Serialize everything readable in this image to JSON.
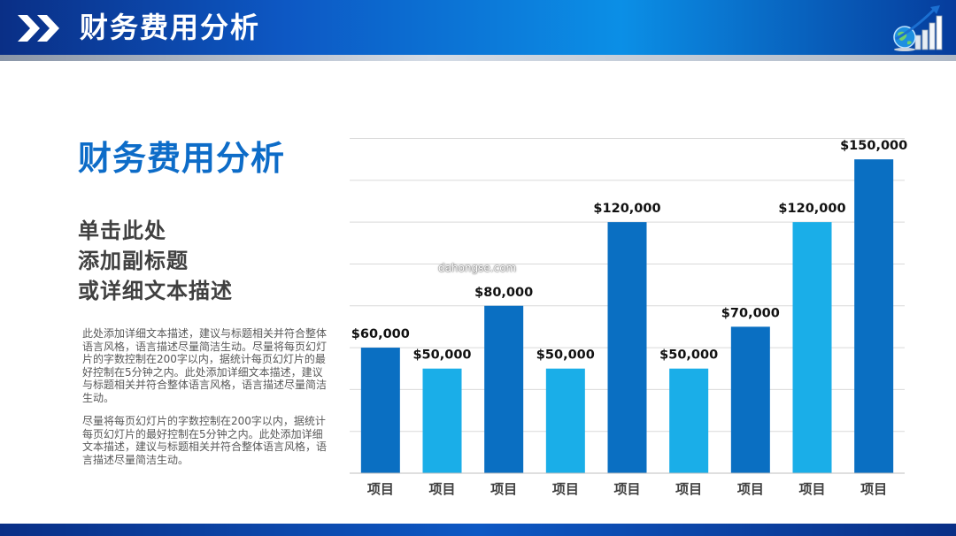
{
  "header": {
    "title": "财务费用分析",
    "chevron_icon": "double-chevron-right-icon",
    "logo_icon": "globe-growth-chart-logo"
  },
  "main": {
    "title": "财务费用分析",
    "subtitle_lines": [
      "单击此处",
      "添加副标题",
      "或详细文本描述"
    ],
    "paragraphs": [
      "此处添加详细文本描述，建议与标题相关并符合整体语言风格，语言描述尽量简洁生动。尽量将每页幻灯片的字数控制在200字以内，据统计每页幻灯片的最好控制在5分钟之内。此处添加详细文本描述，建议与标题相关并符合整体语言风格，语言描述尽量简洁生动。",
      "尽量将每页幻灯片的字数控制在200字以内，据统计每页幻灯片的最好控制在5分钟之内。此处添加详细文本描述，建议与标题相关并符合整体语言风格，语言描述尽量简洁生动。"
    ],
    "watermark": "dahongse.com"
  },
  "colors": {
    "header_dark": "#0a2f86",
    "header_light": "#0b8fe6",
    "title_blue": "#0d6cc8",
    "bar_dark": "#0a6fc2",
    "bar_light": "#1aaee8"
  },
  "chart_data": {
    "type": "bar",
    "categories": [
      "项目",
      "项目",
      "项目",
      "项目",
      "项目",
      "项目",
      "项目",
      "项目",
      "项目"
    ],
    "values": [
      60000,
      50000,
      80000,
      50000,
      120000,
      50000,
      70000,
      120000,
      150000
    ],
    "data_labels": [
      "$60,000",
      "$50,000",
      "$80,000",
      "$50,000",
      "$120,000",
      "$50,000",
      "$70,000",
      "$120,000",
      "$150,000"
    ],
    "bar_color_pattern": [
      "dark",
      "light",
      "dark",
      "light",
      "dark",
      "light",
      "dark",
      "light",
      "dark"
    ],
    "ylim": [
      0,
      160000
    ],
    "grid": true,
    "title": "",
    "xlabel": "",
    "ylabel": ""
  }
}
